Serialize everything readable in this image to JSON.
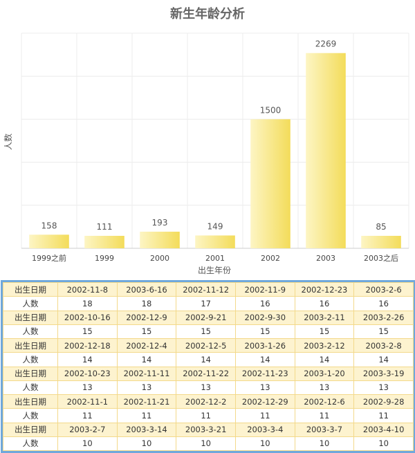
{
  "chart_data": {
    "type": "bar",
    "title": "新生年龄分析",
    "xlabel": "出生年份",
    "ylabel": "人数",
    "categories": [
      "1999之前",
      "1999",
      "2000",
      "2001",
      "2002",
      "2003",
      "2003之后"
    ],
    "values": [
      158,
      111,
      193,
      149,
      1500,
      2269,
      85
    ],
    "ylim": [
      0,
      2500
    ],
    "grid": true,
    "bar_color_start": "#fdf5c4",
    "bar_color_end": "#f3dc5a"
  },
  "table": {
    "date_label": "出生日期",
    "count_label": "人数",
    "groups": [
      {
        "dates": [
          "2002-11-8",
          "2003-6-16",
          "2002-11-12",
          "2002-11-9",
          "2002-12-23",
          "2003-2-6"
        ],
        "counts": [
          "18",
          "18",
          "17",
          "16",
          "16",
          "16"
        ]
      },
      {
        "dates": [
          "2002-10-16",
          "2002-12-9",
          "2002-9-21",
          "2002-9-30",
          "2003-2-11",
          "2003-2-26"
        ],
        "counts": [
          "15",
          "15",
          "15",
          "15",
          "15",
          "15"
        ]
      },
      {
        "dates": [
          "2002-12-18",
          "2002-12-4",
          "2002-12-5",
          "2003-1-26",
          "2003-2-12",
          "2003-2-8"
        ],
        "counts": [
          "14",
          "14",
          "14",
          "14",
          "14",
          "14"
        ]
      },
      {
        "dates": [
          "2002-10-23",
          "2002-11-11",
          "2002-11-22",
          "2002-11-23",
          "2003-1-20",
          "2003-3-19"
        ],
        "counts": [
          "13",
          "13",
          "13",
          "13",
          "13",
          "13"
        ]
      },
      {
        "dates": [
          "2002-11-1",
          "2002-11-21",
          "2002-12-2",
          "2002-12-29",
          "2002-12-6",
          "2002-9-28"
        ],
        "counts": [
          "11",
          "11",
          "11",
          "11",
          "11",
          "11"
        ]
      },
      {
        "dates": [
          "2003-2-7",
          "2003-3-14",
          "2003-3-21",
          "2003-3-4",
          "2003-3-7",
          "2003-4-10"
        ],
        "counts": [
          "10",
          "10",
          "10",
          "10",
          "10",
          "10"
        ]
      }
    ]
  }
}
